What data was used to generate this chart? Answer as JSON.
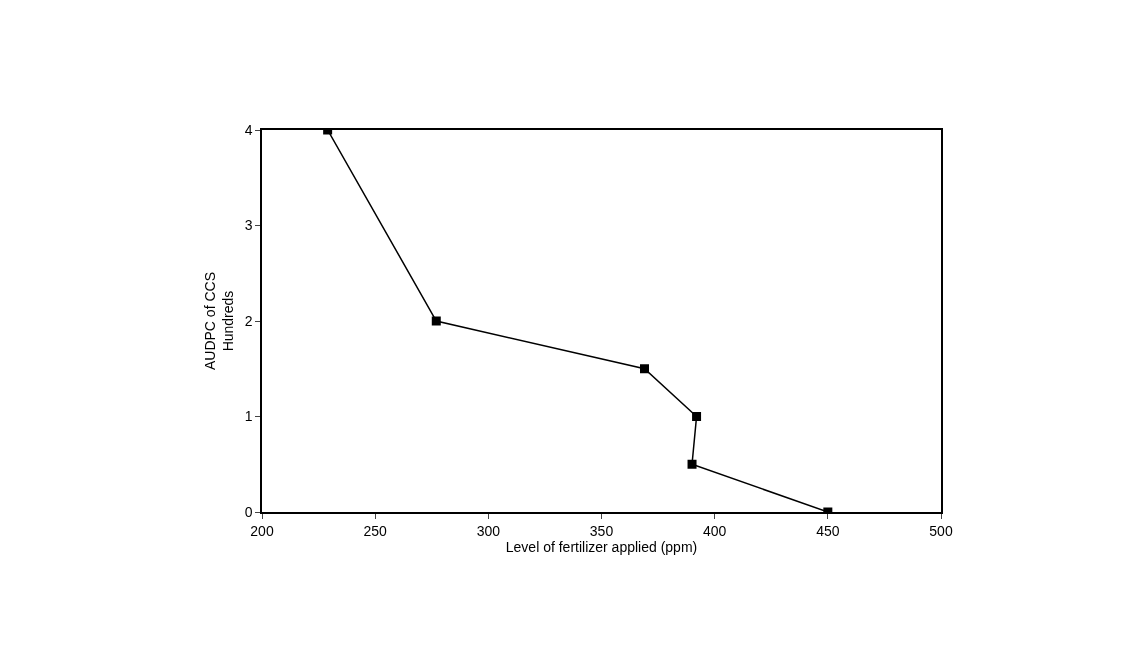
{
  "chart_data": {
    "type": "line",
    "xlabel": "Level of fertilizer applied (ppm)",
    "ylabel": "AUDPC of CCS\nHundreds",
    "x": [
      229,
      277,
      369,
      392,
      390,
      450
    ],
    "series": [
      {
        "color": "#000000",
        "values": [
          4,
          2,
          1.5,
          1,
          0.5,
          0
        ]
      }
    ],
    "xlim": [
      200,
      500
    ],
    "xticks": [
      200,
      250,
      300,
      350,
      400,
      450,
      500
    ],
    "ylim": [
      0,
      4
    ],
    "yticks": [
      0,
      1,
      2,
      3,
      4
    ],
    "marker": "square",
    "line_style": "solid"
  }
}
